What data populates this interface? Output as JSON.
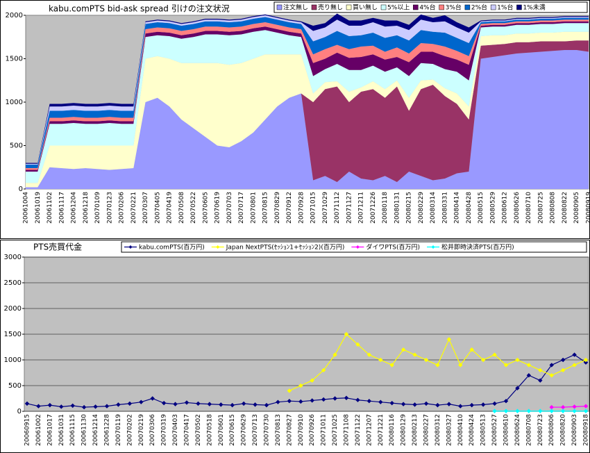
{
  "chart_data": [
    {
      "type": "area",
      "stacked": true,
      "grid": false,
      "title": "kabu.comPTS bid-ask spread 引けの注文状況",
      "categories": [
        "20061004",
        "20061019",
        "20061102",
        "20061117",
        "20061204",
        "20061218",
        "20070109",
        "20070123",
        "20070206",
        "20070221",
        "20070307",
        "20070405",
        "20070419",
        "20070508",
        "20070522",
        "20070605",
        "20070619",
        "20070703",
        "20070717",
        "20070801",
        "20070815",
        "20070829",
        "20070912",
        "20070928",
        "20071015",
        "20071029",
        "20071112",
        "20071127",
        "20071211",
        "20071226",
        "20080118",
        "20080131",
        "20080215",
        "20080229",
        "20080314",
        "20080331",
        "20080414",
        "20080428",
        "20080515",
        "20080529",
        "20080612",
        "20080626",
        "20080710",
        "20080725",
        "20080808",
        "20080822",
        "20080905",
        "20080919"
      ],
      "ylim": [
        0,
        2000
      ],
      "yticks": [
        0,
        500,
        1000,
        1500,
        2000
      ],
      "series": [
        {
          "name": "注文無し",
          "color": "#9999ff",
          "values": [
            20,
            20,
            250,
            240,
            230,
            240,
            230,
            220,
            230,
            240,
            1000,
            1050,
            950,
            800,
            700,
            600,
            500,
            480,
            550,
            650,
            800,
            950,
            1050,
            1100,
            100,
            150,
            80,
            200,
            120,
            100,
            150,
            80,
            200,
            150,
            100,
            120,
            180,
            200,
            1500,
            1520,
            1540,
            1560,
            1570,
            1580,
            1590,
            1600,
            1600,
            1580
          ]
        },
        {
          "name": "売り無し",
          "color": "#993366",
          "values": [
            0,
            0,
            0,
            0,
            0,
            0,
            0,
            0,
            0,
            0,
            0,
            0,
            0,
            0,
            0,
            0,
            0,
            0,
            0,
            0,
            0,
            0,
            0,
            0,
            900,
            1000,
            1100,
            800,
            1000,
            1050,
            900,
            1100,
            700,
            1000,
            1100,
            950,
            800,
            600,
            150,
            140,
            130,
            130,
            120,
            120,
            110,
            100,
            110,
            130
          ]
        },
        {
          "name": "買い無し",
          "color": "#ffffcc",
          "values": [
            50,
            50,
            250,
            260,
            270,
            260,
            270,
            280,
            270,
            260,
            500,
            480,
            550,
            650,
            750,
            850,
            950,
            950,
            900,
            850,
            750,
            600,
            500,
            450,
            100,
            80,
            60,
            120,
            50,
            90,
            100,
            70,
            150,
            100,
            60,
            90,
            120,
            150,
            110,
            110,
            100,
            100,
            100,
            100,
            100,
            110,
            100,
            100
          ]
        },
        {
          "name": "5%以上",
          "color": "#ccffff",
          "values": [
            130,
            130,
            250,
            250,
            260,
            250,
            250,
            260,
            250,
            250,
            250,
            240,
            260,
            280,
            300,
            330,
            330,
            340,
            330,
            310,
            280,
            250,
            220,
            200,
            200,
            150,
            200,
            250,
            200,
            180,
            200,
            150,
            250,
            200,
            180,
            220,
            250,
            300,
            100,
            100,
            100,
            100,
            100,
            100,
            100,
            100,
            100,
            100
          ]
        },
        {
          "name": "4%台",
          "color": "#660066",
          "values": [
            20,
            20,
            30,
            30,
            30,
            30,
            30,
            30,
            30,
            30,
            40,
            40,
            40,
            40,
            40,
            40,
            40,
            40,
            40,
            40,
            40,
            40,
            40,
            40,
            150,
            120,
            130,
            140,
            150,
            130,
            140,
            120,
            160,
            130,
            140,
            150,
            140,
            180,
            20,
            20,
            20,
            20,
            20,
            20,
            20,
            20,
            20,
            20
          ]
        },
        {
          "name": "3%台",
          "color": "#ff8080",
          "values": [
            20,
            20,
            40,
            40,
            40,
            40,
            40,
            40,
            40,
            40,
            50,
            50,
            50,
            50,
            50,
            50,
            50,
            50,
            50,
            50,
            50,
            50,
            50,
            50,
            100,
            110,
            90,
            100,
            120,
            100,
            90,
            110,
            100,
            100,
            90,
            110,
            100,
            100,
            20,
            20,
            20,
            20,
            20,
            20,
            20,
            20,
            20,
            20
          ]
        },
        {
          "name": "2%台",
          "color": "#0066cc",
          "values": [
            40,
            40,
            80,
            80,
            80,
            80,
            80,
            80,
            80,
            80,
            60,
            60,
            60,
            60,
            60,
            60,
            60,
            60,
            60,
            60,
            60,
            60,
            60,
            60,
            150,
            140,
            160,
            150,
            130,
            150,
            160,
            140,
            150,
            150,
            140,
            160,
            150,
            150,
            20,
            20,
            20,
            20,
            20,
            20,
            20,
            20,
            20,
            20
          ]
        },
        {
          "name": "1%台",
          "color": "#ccccff",
          "values": [
            10,
            10,
            50,
            50,
            50,
            50,
            50,
            50,
            50,
            50,
            20,
            20,
            20,
            20,
            20,
            20,
            20,
            20,
            20,
            20,
            20,
            20,
            20,
            20,
            120,
            110,
            130,
            120,
            110,
            120,
            130,
            110,
            120,
            120,
            110,
            130,
            120,
            120,
            10,
            10,
            10,
            10,
            10,
            10,
            10,
            10,
            10,
            10
          ]
        },
        {
          "name": "1%未満",
          "color": "#000080",
          "values": [
            10,
            10,
            30,
            30,
            30,
            30,
            30,
            30,
            30,
            30,
            10,
            10,
            10,
            10,
            10,
            10,
            10,
            10,
            10,
            10,
            10,
            10,
            10,
            10,
            60,
            50,
            70,
            60,
            60,
            50,
            70,
            60,
            60,
            60,
            50,
            70,
            60,
            60,
            10,
            10,
            10,
            10,
            10,
            10,
            10,
            10,
            10,
            10
          ]
        }
      ]
    },
    {
      "type": "line",
      "grid": true,
      "title": "PTS売買代金",
      "categories": [
        "20060915",
        "20061002",
        "20061017",
        "20061031",
        "20061115",
        "20061130",
        "20061214",
        "20061228",
        "20070119",
        "20070202",
        "20070219",
        "20070306",
        "20070319",
        "20070403",
        "20070417",
        "20070502",
        "20070518",
        "20070601",
        "20070615",
        "20070629",
        "20070713",
        "20070730",
        "20070813",
        "20070827",
        "20070910",
        "20070926",
        "20071011",
        "20071025",
        "20071108",
        "20071122",
        "20071207",
        "20071221",
        "20080116",
        "20080129",
        "20080213",
        "20080227",
        "20080312",
        "20080327",
        "20080410",
        "20080424",
        "20080513",
        "20080527",
        "20080610",
        "20080624",
        "20080708",
        "20080723",
        "20080806",
        "20080820",
        "20080903",
        "20080918"
      ],
      "ylim": [
        0,
        3000
      ],
      "yticks": [
        0,
        500,
        1000,
        1500,
        2000,
        2500,
        3000
      ],
      "series": [
        {
          "name": "kabu.comPTS(百万円)",
          "color": "#000080",
          "values": [
            150,
            100,
            120,
            90,
            110,
            80,
            90,
            100,
            130,
            150,
            180,
            250,
            160,
            140,
            170,
            150,
            140,
            130,
            120,
            150,
            130,
            120,
            180,
            200,
            190,
            210,
            230,
            250,
            260,
            220,
            200,
            180,
            160,
            140,
            130,
            150,
            120,
            140,
            100,
            120,
            130,
            150,
            200,
            450,
            700,
            600,
            900,
            1000,
            1100,
            950
          ]
        },
        {
          "name": "Japan NextPTS(ｾｯｼｮﾝ1+ｾｯｼｮﾝ2)(百万円)",
          "color": "#ffff00",
          "values": [
            null,
            null,
            null,
            null,
            null,
            null,
            null,
            null,
            null,
            null,
            null,
            null,
            null,
            null,
            null,
            null,
            null,
            null,
            null,
            null,
            null,
            null,
            null,
            400,
            500,
            600,
            800,
            1100,
            1500,
            1300,
            1100,
            1000,
            900,
            1200,
            1100,
            1000,
            900,
            1400,
            900,
            1200,
            1000,
            1100,
            900,
            1000,
            900,
            800,
            700,
            800,
            900,
            1000
          ]
        },
        {
          "name": "ダイワPTS(百万円)",
          "color": "#ff00ff",
          "values": [
            null,
            null,
            null,
            null,
            null,
            null,
            null,
            null,
            null,
            null,
            null,
            null,
            null,
            null,
            null,
            null,
            null,
            null,
            null,
            null,
            null,
            null,
            null,
            null,
            null,
            null,
            null,
            null,
            null,
            null,
            null,
            null,
            null,
            null,
            null,
            null,
            null,
            null,
            null,
            null,
            null,
            null,
            null,
            null,
            null,
            null,
            80,
            80,
            90,
            100
          ]
        },
        {
          "name": "松井即時決済PTS(百万円)",
          "color": "#00ffff",
          "values": [
            null,
            null,
            null,
            null,
            null,
            null,
            null,
            null,
            null,
            null,
            null,
            null,
            null,
            null,
            null,
            null,
            null,
            null,
            null,
            null,
            null,
            null,
            null,
            null,
            null,
            null,
            null,
            null,
            null,
            null,
            null,
            null,
            null,
            null,
            null,
            null,
            null,
            null,
            null,
            null,
            null,
            5,
            5,
            5,
            5,
            5,
            5,
            5,
            5,
            5
          ]
        }
      ]
    }
  ]
}
